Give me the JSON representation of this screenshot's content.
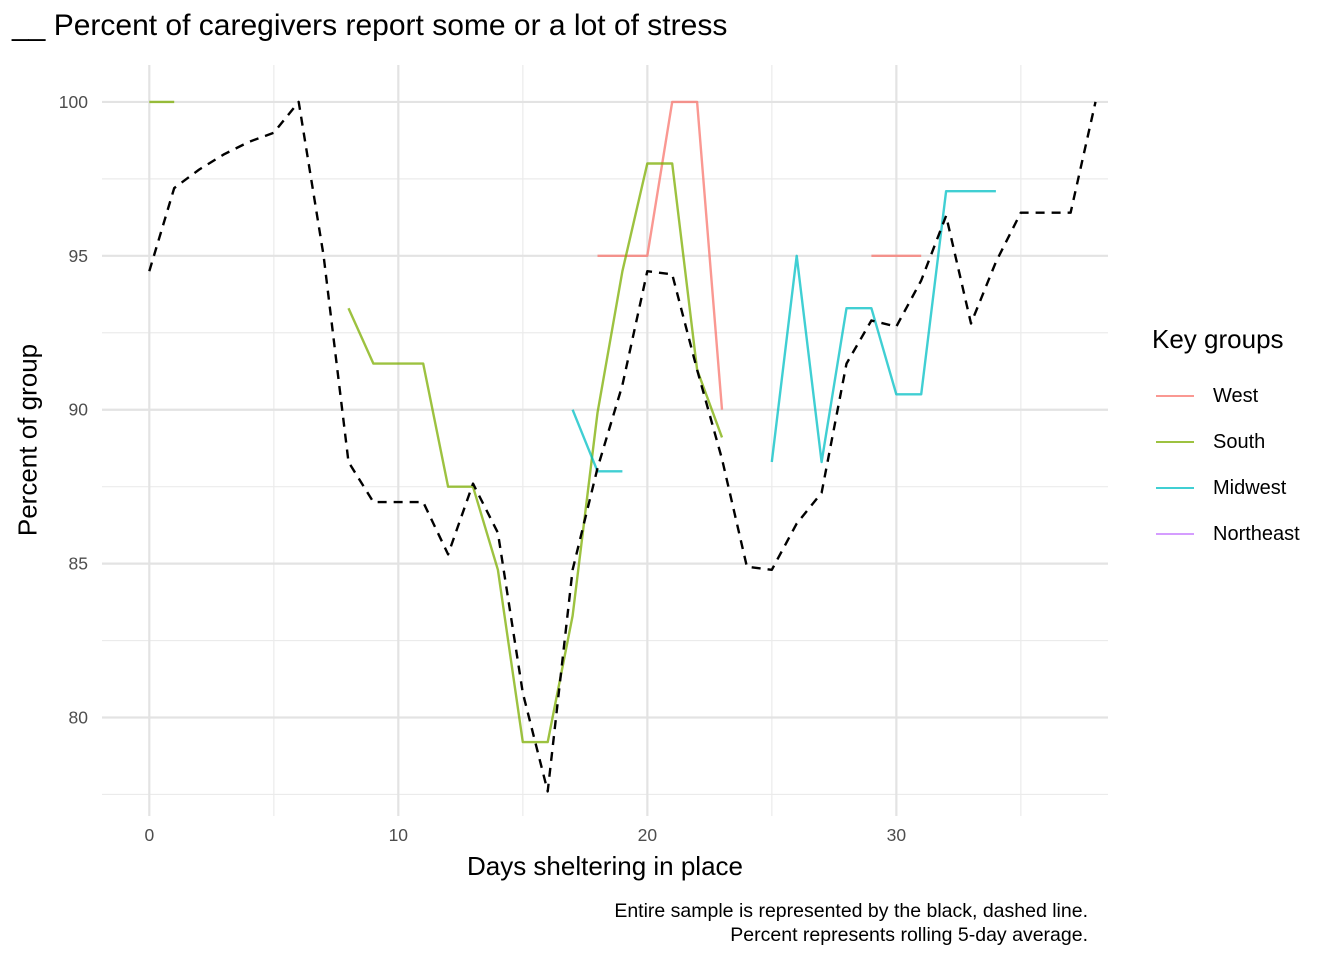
{
  "chart_data": {
    "type": "line",
    "title": "__ Percent of caregivers report some or a lot of stress",
    "xlabel": "Days sheltering in place",
    "ylabel": "Percent of group",
    "caption": [
      "Entire sample is represented by the black, dashed line.",
      "Percent represents rolling 5-day average."
    ],
    "xlim": [
      -1.9,
      38.5
    ],
    "ylim": [
      76.8,
      101.2
    ],
    "x_ticks": [
      0,
      10,
      20,
      30
    ],
    "y_ticks": [
      80,
      85,
      90,
      95,
      100
    ],
    "grid": true,
    "legend_title": "Key groups",
    "legend_position": "right",
    "overall": {
      "style": "dashed",
      "color": "#000000",
      "x": [
        0,
        1,
        2,
        3,
        4,
        5,
        6,
        7,
        8,
        9,
        10,
        11,
        12,
        13,
        14,
        15,
        16,
        17,
        18,
        19,
        20,
        21,
        22,
        23,
        24,
        25,
        26,
        27,
        28,
        29,
        30,
        31,
        32,
        33,
        34,
        35,
        36,
        37,
        38
      ],
      "y": [
        94.5,
        97.2,
        97.8,
        98.3,
        98.7,
        99.0,
        100.0,
        95.0,
        88.3,
        87.0,
        87.0,
        87.0,
        85.3,
        87.6,
        86.0,
        80.8,
        77.6,
        84.8,
        88.1,
        90.8,
        94.5,
        94.4,
        91.3,
        88.4,
        84.9,
        84.8,
        86.3,
        87.3,
        91.5,
        92.9,
        92.7,
        94.2,
        96.3,
        92.8,
        94.8,
        96.4,
        96.4,
        96.4,
        100.0
      ]
    },
    "series": [
      {
        "name": "West",
        "color": "#F8766D",
        "x": [
          18,
          19,
          20,
          21,
          22,
          23,
          29,
          30,
          31
        ],
        "y": [
          95,
          95,
          95,
          100,
          100,
          90,
          95,
          95,
          95
        ],
        "breaks_after": [
          23
        ]
      },
      {
        "name": "South",
        "color": "#7CAE00",
        "x": [
          0,
          1,
          8,
          9,
          10,
          11,
          12,
          13,
          14,
          15,
          16,
          17,
          18,
          19,
          20,
          21,
          22,
          23
        ],
        "y": [
          100,
          100,
          93.3,
          91.5,
          91.5,
          91.5,
          87.5,
          87.5,
          84.8,
          79.2,
          79.2,
          83.3,
          89.9,
          94.5,
          98.0,
          98.0,
          91.3,
          89.1
        ],
        "breaks_after": [
          1
        ]
      },
      {
        "name": "Midwest",
        "color": "#00BFC4",
        "x": [
          17,
          18,
          19,
          25,
          26,
          27,
          28,
          29,
          30,
          31,
          32,
          33,
          34
        ],
        "y": [
          90,
          88,
          88,
          88.3,
          95.0,
          88.3,
          93.3,
          93.3,
          90.5,
          90.5,
          97.1,
          97.1,
          97.1
        ],
        "breaks_after": [
          19
        ]
      },
      {
        "name": "Northeast",
        "color": "#C77CFF",
        "x": [],
        "y": [],
        "breaks_after": []
      }
    ]
  }
}
